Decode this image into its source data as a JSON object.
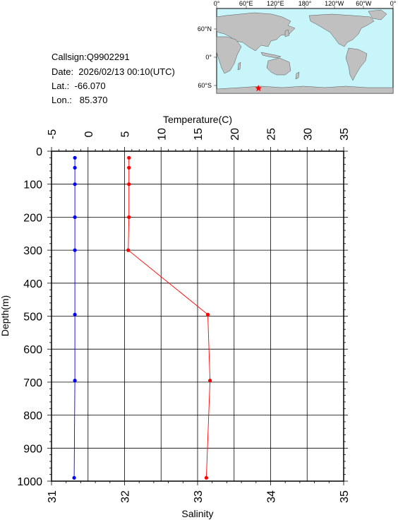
{
  "station": {
    "callsign": "Callsign:Q9902291",
    "date": "Date:  2026/02/13 00:10(UTC)",
    "lat": "Lat.:  -66.070",
    "lon": "Lon.:   85.370"
  },
  "map": {
    "top_labels": [
      "0°",
      "60°E",
      "120°E",
      "180°",
      "120°W",
      "60°W",
      "0°"
    ],
    "side_labels": [
      "60°N",
      "0°",
      "60°S"
    ],
    "ocean_color": "#c8f5fa",
    "land_color": "#c0c0c0",
    "marker": {
      "lon": 85.37,
      "lat": -66.07,
      "symbol": "star",
      "color": "#ff0000"
    }
  },
  "chart_data": {
    "type": "line",
    "ylabel": "Depth(m)",
    "ylim": [
      1000,
      0
    ],
    "yticks": [
      "0",
      "100",
      "200",
      "300",
      "400",
      "500",
      "600",
      "700",
      "800",
      "900",
      "1000"
    ],
    "top_axis": {
      "label": "Temperature(C)",
      "range": [
        -5,
        35
      ],
      "ticks": [
        "-5",
        "0",
        "5",
        "10",
        "15",
        "20",
        "25",
        "30",
        "35"
      ]
    },
    "bottom_axis": {
      "label": "Salinity",
      "range": [
        31,
        35
      ],
      "ticks": [
        "31",
        "32",
        "33",
        "34",
        "35"
      ]
    },
    "series": [
      {
        "axis": "top",
        "color": "#ff0000",
        "points": [
          {
            "x": 5.6,
            "depth": 20
          },
          {
            "x": 5.6,
            "depth": 50
          },
          {
            "x": 5.6,
            "depth": 100
          },
          {
            "x": 5.6,
            "depth": 200
          },
          {
            "x": 5.5,
            "depth": 300
          },
          {
            "x": 16.4,
            "depth": 495
          },
          {
            "x": 16.7,
            "depth": 695
          },
          {
            "x": 16.2,
            "depth": 990
          }
        ]
      },
      {
        "axis": "bottom",
        "color": "#0000ff",
        "points": [
          {
            "x": 31.32,
            "depth": 20
          },
          {
            "x": 31.32,
            "depth": 50
          },
          {
            "x": 31.32,
            "depth": 100
          },
          {
            "x": 31.32,
            "depth": 200
          },
          {
            "x": 31.32,
            "depth": 300
          },
          {
            "x": 31.32,
            "depth": 495
          },
          {
            "x": 31.32,
            "depth": 695
          },
          {
            "x": 31.31,
            "depth": 990
          }
        ]
      }
    ]
  }
}
